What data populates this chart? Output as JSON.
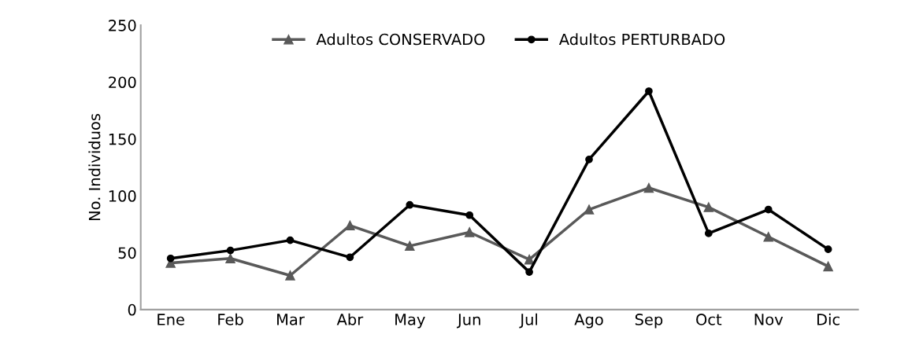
{
  "chart_data": {
    "type": "line",
    "ylabel": "No. Individuos",
    "categories": [
      "Ene",
      "Feb",
      "Mar",
      "Abr",
      "May",
      "Jun",
      "Jul",
      "Ago",
      "Sep",
      "Oct",
      "Nov",
      "Dic"
    ],
    "series": [
      {
        "name": "Adultos CONSERVADO",
        "color": "#595959",
        "marker": "triangle",
        "values": [
          41,
          45,
          30,
          74,
          56,
          68,
          44,
          88,
          107,
          90,
          64,
          38
        ]
      },
      {
        "name": "Adultos PERTURBADO",
        "color": "#000000",
        "marker": "circle",
        "values": [
          45,
          52,
          61,
          46,
          92,
          83,
          33,
          132,
          192,
          67,
          88,
          53
        ]
      }
    ],
    "ylim": [
      0,
      250
    ],
    "yticks": [
      0,
      50,
      100,
      150,
      200,
      250
    ],
    "grid": false,
    "legend": "top",
    "line_style": "solid"
  }
}
